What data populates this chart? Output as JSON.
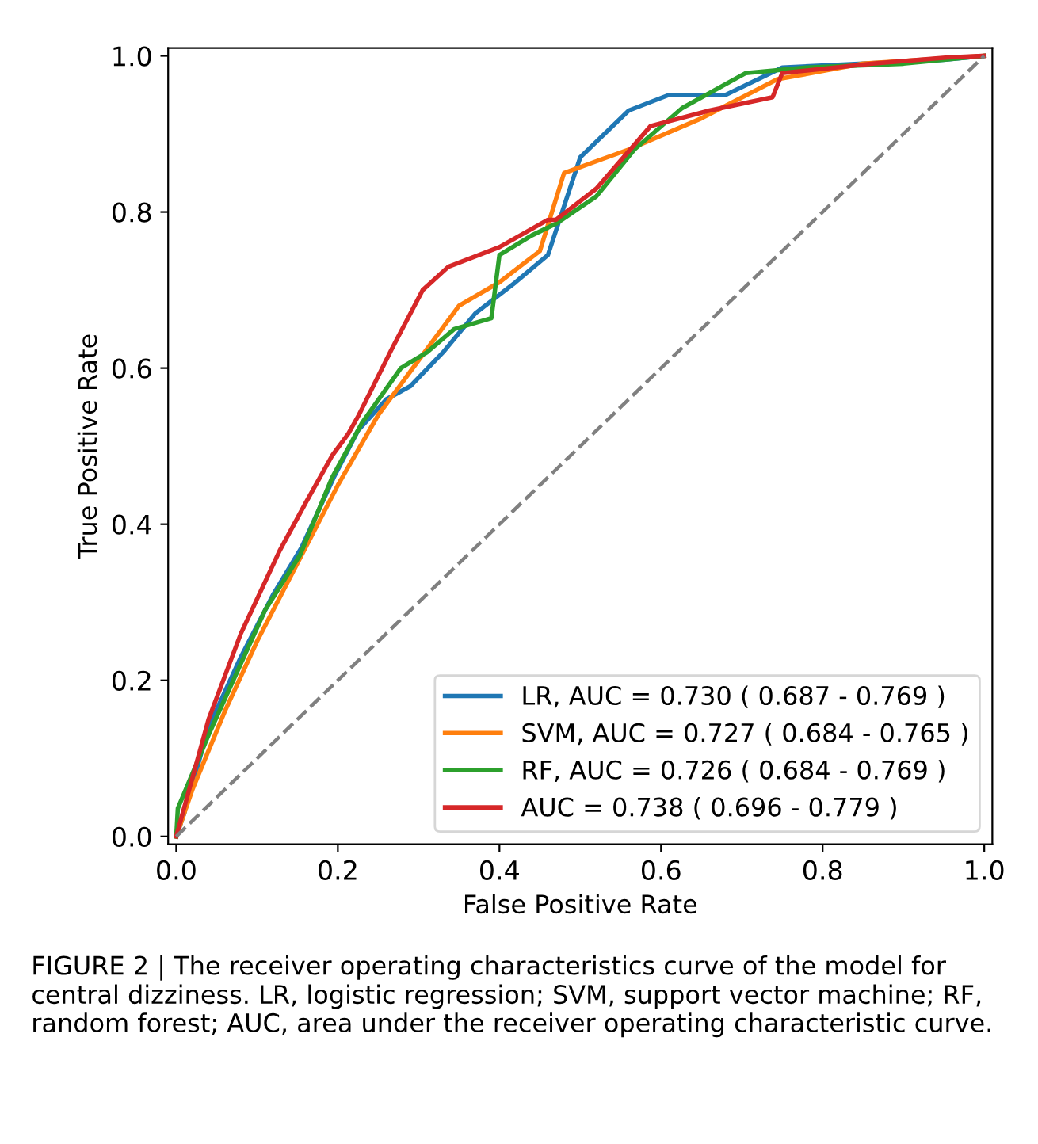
{
  "chart_data": {
    "type": "line",
    "xlabel": "False Positive Rate",
    "ylabel": "True Positive Rate",
    "xlim": [
      -0.01,
      1.01
    ],
    "ylim": [
      -0.01,
      1.01
    ],
    "xticks": [
      {
        "value": 0,
        "label": "0.0"
      },
      0.2,
      0.4,
      0.6,
      0.8,
      {
        "value": 1,
        "label": "1.0"
      }
    ],
    "yticks": [
      {
        "value": 0,
        "label": "0.0"
      },
      0.2,
      0.4,
      0.6,
      0.8,
      {
        "value": 1,
        "label": "1.0"
      }
    ],
    "grid": false,
    "legend": "bottom right",
    "marker": "none",
    "series": [
      {
        "name": "LR, AUC = 0.730 ( 0.687 - 0.769 )",
        "color": "#1f77b4",
        "line_style": "solid",
        "x": [
          0.0,
          0.01,
          0.04,
          0.08,
          0.12,
          0.155,
          0.195,
          0.225,
          0.26,
          0.29,
          0.33,
          0.37,
          0.42,
          0.46,
          0.5,
          0.51,
          0.56,
          0.61,
          0.68,
          0.75,
          0.85,
          0.95,
          1.0
        ],
        "values": [
          0.0,
          0.03,
          0.14,
          0.23,
          0.31,
          0.37,
          0.46,
          0.52,
          0.56,
          0.577,
          0.62,
          0.67,
          0.71,
          0.745,
          0.87,
          0.88,
          0.93,
          0.95,
          0.95,
          0.985,
          0.99,
          0.995,
          1.0
        ]
      },
      {
        "name": "SVM, AUC = 0.727 ( 0.684 - 0.765 )",
        "color": "#ff7f0e",
        "line_style": "solid",
        "x": [
          0.0,
          0.02,
          0.06,
          0.1,
          0.15,
          0.2,
          0.25,
          0.3,
          0.35,
          0.4,
          0.45,
          0.48,
          0.56,
          0.65,
          0.744,
          0.85,
          1.0
        ],
        "values": [
          0.0,
          0.06,
          0.16,
          0.25,
          0.35,
          0.45,
          0.54,
          0.61,
          0.68,
          0.71,
          0.75,
          0.85,
          0.88,
          0.92,
          0.97,
          0.99,
          1.0
        ]
      },
      {
        "name": "RF, AUC = 0.726 ( 0.684 - 0.769 )",
        "color": "#2ca02c",
        "line_style": "solid",
        "x": [
          0.0,
          0.002,
          0.04,
          0.075,
          0.11,
          0.153,
          0.193,
          0.23,
          0.278,
          0.31,
          0.344,
          0.39,
          0.4,
          0.44,
          0.47,
          0.52,
          0.567,
          0.626,
          0.705,
          0.78,
          0.9,
          1.0
        ],
        "values": [
          0.0,
          0.036,
          0.13,
          0.21,
          0.29,
          0.36,
          0.46,
          0.53,
          0.6,
          0.62,
          0.65,
          0.664,
          0.745,
          0.77,
          0.785,
          0.82,
          0.88,
          0.933,
          0.978,
          0.985,
          0.99,
          1.0
        ]
      },
      {
        "name": "AUC = 0.738 ( 0.696 - 0.779 )",
        "color": "#d62728",
        "line_style": "solid",
        "x": [
          0.0,
          0.04,
          0.08,
          0.128,
          0.16,
          0.193,
          0.213,
          0.226,
          0.266,
          0.305,
          0.337,
          0.4,
          0.46,
          0.47,
          0.52,
          0.587,
          0.66,
          0.738,
          0.75,
          0.862,
          0.955,
          1.0
        ],
        "values": [
          0.0,
          0.15,
          0.26,
          0.366,
          0.427,
          0.488,
          0.516,
          0.54,
          0.623,
          0.7,
          0.73,
          0.755,
          0.79,
          0.79,
          0.83,
          0.91,
          0.93,
          0.947,
          0.978,
          0.99,
          0.998,
          1.0
        ]
      },
      {
        "color": "#808080",
        "line_style": "dashed",
        "x": [
          0.0,
          1.0
        ],
        "values": [
          0.0,
          1.0
        ]
      }
    ],
    "annotations": [
      "FIGURE 2 | The receiver operating characteristics curve of the model for central dizziness. LR, logistic regression; SVM, support vector machine; RF, random forest; AUC, area under the receiver operating characteristic curve."
    ]
  }
}
